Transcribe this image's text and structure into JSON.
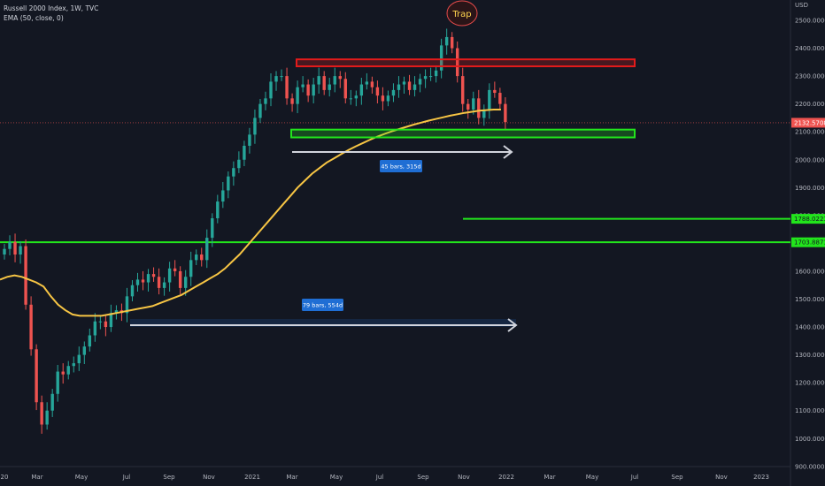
{
  "legend": {
    "symbol": "Russell 2000 Index, 1W, TVC",
    "indicator": "EMA (50, close, 0)"
  },
  "chart_data": {
    "type": "candlestick",
    "currency": "USD",
    "ylim": [
      900,
      2560
    ],
    "y_ticks": [
      "900.0000",
      "1000.0000",
      "1100.0000",
      "1200.0000",
      "1300.0000",
      "1400.0000",
      "1500.0000",
      "1600.0000",
      "1700.0000",
      "1800.0000",
      "1900.0000",
      "2000.0000",
      "2100.0000",
      "2200.0000",
      "2300.0000",
      "2400.0000",
      "2500.0000"
    ],
    "x_ticks": [
      "20",
      "Mar",
      "May",
      "Jul",
      "Sep",
      "Nov",
      "2021",
      "Mar",
      "May",
      "Jul",
      "Sep",
      "Nov",
      "2022",
      "Mar",
      "May",
      "Jul",
      "Sep",
      "Nov",
      "2023"
    ],
    "last_price": "2132.5708",
    "last_price_value": 2132.57,
    "levels": [
      {
        "label": "1788.0221",
        "value": 1788.02,
        "color": "#22e51c"
      },
      {
        "label": "1703.8871",
        "value": 1703.89,
        "color": "#22e51c"
      }
    ],
    "zones": [
      {
        "name": "resistance",
        "from": 2335,
        "to": 2360,
        "color": "#e31b1b"
      },
      {
        "name": "support",
        "from": 2080,
        "to": 2108,
        "color": "#22e51c"
      }
    ],
    "annotations": [
      {
        "text": "Trap"
      },
      {
        "text": "45 bars, 315d"
      },
      {
        "text": "79 bars, 554d"
      }
    ],
    "candles_close": [
      1680,
      1705,
      1660,
      1690,
      1480,
      1320,
      1130,
      1050,
      1100,
      1160,
      1240,
      1230,
      1260,
      1270,
      1300,
      1330,
      1370,
      1420,
      1420,
      1400,
      1450,
      1460,
      1450,
      1510,
      1550,
      1570,
      1560,
      1590,
      1580,
      1540,
      1560,
      1610,
      1600,
      1540,
      1580,
      1640,
      1660,
      1640,
      1720,
      1790,
      1850,
      1890,
      1940,
      1970,
      2000,
      2050,
      2090,
      2150,
      2200,
      2220,
      2280,
      2300,
      2300,
      2220,
      2200,
      2260,
      2270,
      2230,
      2270,
      2300,
      2250,
      2270,
      2300,
      2290,
      2220,
      2220,
      2230,
      2270,
      2280,
      2260,
      2230,
      2210,
      2230,
      2250,
      2270,
      2280,
      2250,
      2270,
      2290,
      2300,
      2300,
      2320,
      2410,
      2440,
      2400,
      2300,
      2200,
      2180,
      2220,
      2150,
      2180,
      2250,
      2240,
      2200,
      2135
    ],
    "ema_50": [
      1570,
      1580,
      1585,
      1580,
      1570,
      1560,
      1545,
      1510,
      1480,
      1460,
      1445,
      1440,
      1440,
      1440,
      1440,
      1445,
      1450,
      1455,
      1460,
      1465,
      1470,
      1475,
      1485,
      1495,
      1505,
      1515,
      1530,
      1545,
      1560,
      1575,
      1590,
      1610,
      1635,
      1660,
      1690,
      1720,
      1750,
      1780,
      1810,
      1840,
      1870,
      1900,
      1925,
      1950,
      1970,
      1990,
      2005,
      2020,
      2035,
      2048,
      2060,
      2072,
      2083,
      2093,
      2102,
      2110,
      2118,
      2126,
      2133,
      2140,
      2146,
      2152,
      2158,
      2163,
      2168,
      2172,
      2176,
      2178,
      2180,
      2180
    ]
  }
}
